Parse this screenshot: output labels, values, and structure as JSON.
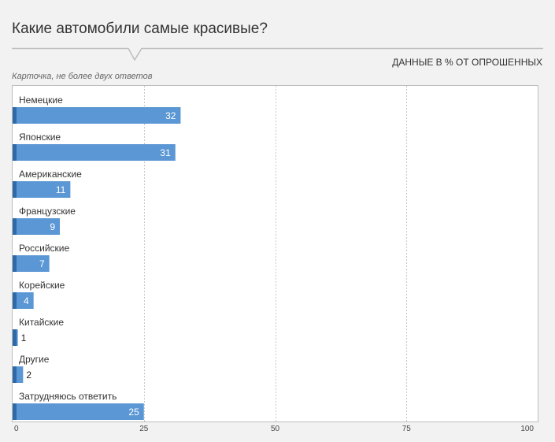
{
  "chart_data": {
    "type": "bar",
    "orientation": "horizontal",
    "title": "Какие автомобили самые красивые?",
    "units_note": "ДАННЫЕ В % ОТ ОПРОШЕННЫХ",
    "subtitle": "Карточка, не более двух ответов",
    "categories": [
      "Немецкие",
      "Японские",
      "Американские",
      "Французские",
      "Российские",
      "Корейские",
      "Китайские",
      "Другие",
      "Затрудняюсь ответить"
    ],
    "values": [
      32,
      31,
      11,
      9,
      7,
      4,
      1,
      2,
      25
    ],
    "xlim": [
      0,
      100
    ],
    "xticks": [
      "0",
      "25",
      "50",
      "75",
      "100"
    ],
    "grid": true,
    "bar_color": "#5b97d4",
    "bar_accent_color": "#2f6aa8"
  }
}
